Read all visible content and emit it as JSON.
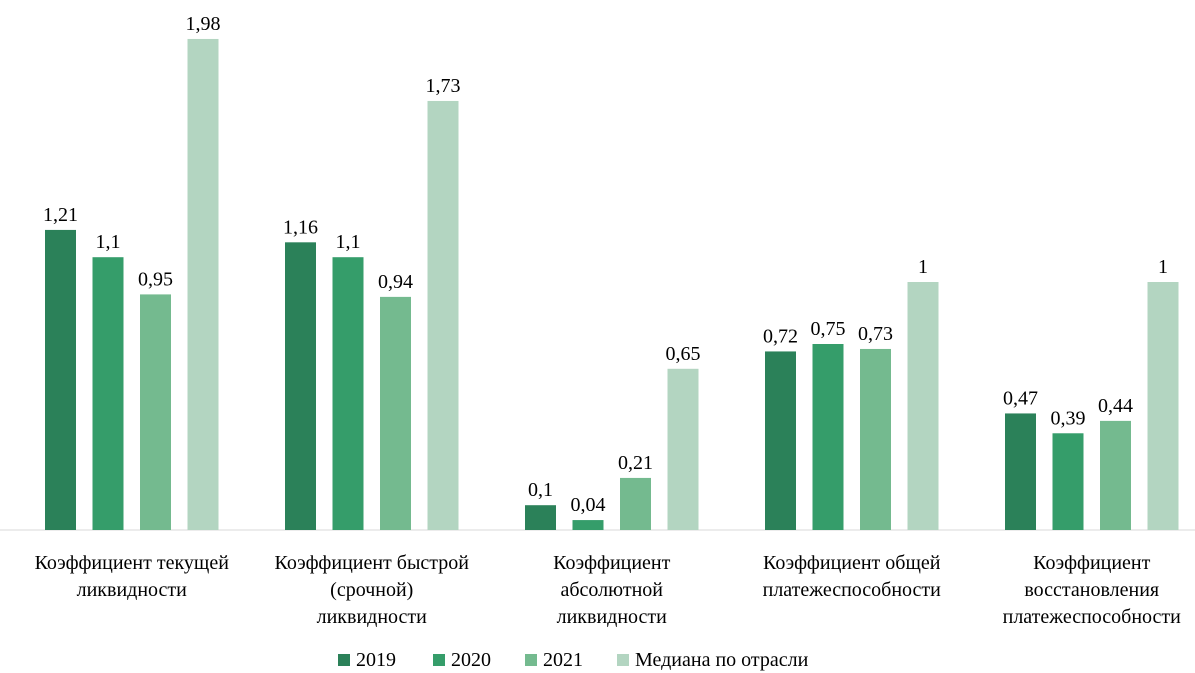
{
  "chart_data": {
    "type": "bar",
    "title": "",
    "xlabel": "",
    "ylabel": "",
    "ylim": [
      0,
      2.0
    ],
    "grid": false,
    "legend_position": "bottom",
    "categories": [
      [
        "Коэффициент текущей",
        "ликвидности"
      ],
      [
        "Коэффициент быстрой",
        "(срочной)",
        "ликвидности"
      ],
      [
        "Коэффициент",
        "абсолютной",
        "ликвидности"
      ],
      [
        "Коэффициент общей",
        "платежеспособности"
      ],
      [
        "Коэффициент",
        "восстановления",
        "платежеспособности"
      ]
    ],
    "series": [
      {
        "name": "2019",
        "color": "#2b8159",
        "values": [
          1.21,
          1.16,
          0.1,
          0.72,
          0.47
        ],
        "labels": [
          "1,21",
          "1,16",
          "0,1",
          "0,72",
          "0,47"
        ]
      },
      {
        "name": "2020",
        "color": "#359d6a",
        "values": [
          1.1,
          1.1,
          0.04,
          0.75,
          0.39
        ],
        "labels": [
          "1,1",
          "1,1",
          "0,04",
          "0,75",
          "0,39"
        ]
      },
      {
        "name": "2021",
        "color": "#74ba8f",
        "values": [
          0.95,
          0.94,
          0.21,
          0.73,
          0.44
        ],
        "labels": [
          "0,95",
          "0,94",
          "0,21",
          "0,73",
          "0,44"
        ]
      },
      {
        "name": "Медиана по отрасли",
        "color": "#b3d5c1",
        "values": [
          1.98,
          1.73,
          0.65,
          1,
          1
        ],
        "labels": [
          "1,98",
          "1,73",
          "0,65",
          "1",
          "1"
        ]
      }
    ]
  }
}
